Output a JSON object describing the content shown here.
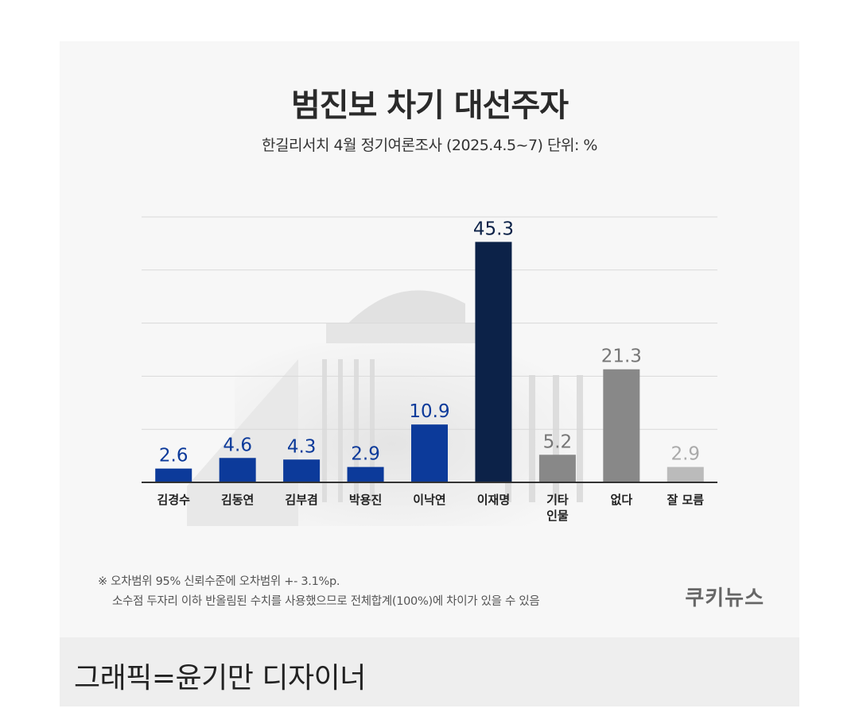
{
  "caption": "그래픽=윤기만 디자이너",
  "footnote": {
    "line1": "※ 오차범위 95% 신뢰수준에 오차범위 +- 3.1%p.",
    "line2": "소수점 두자리 이하 반올림된 수치를 사용했으므로 전체합계(100%)에 차이가 있을 수 있음"
  },
  "logo": "쿠키뉴스",
  "colors": {
    "blue": "#0c3a9a",
    "navy": "#0c2248",
    "gray_dark": "#888888",
    "gray_light": "#bbbbbb"
  },
  "chart_data": {
    "type": "bar",
    "title": "범진보 차기 대선주자",
    "subtitle": "한길리서치 4월 정기여론조사 (2025.4.5~7) 단위: %",
    "categories": [
      "김경수",
      "김동연",
      "김부겸",
      "박용진",
      "이낙연",
      "이재명",
      "기타\n인물",
      "없다",
      "잘 모름"
    ],
    "values": [
      2.6,
      4.6,
      4.3,
      2.9,
      10.9,
      45.3,
      5.2,
      21.3,
      2.9
    ],
    "value_labels": [
      "2.6",
      "4.6",
      "4.3",
      "2.9",
      "10.9",
      "45.3",
      "5.2",
      "21.3",
      "2.9"
    ],
    "bar_colors": [
      "#0c3a9a",
      "#0c3a9a",
      "#0c3a9a",
      "#0c3a9a",
      "#0c3a9a",
      "#0c2248",
      "#888888",
      "#888888",
      "#bbbbbb"
    ],
    "label_colors": [
      "#0c3a9a",
      "#0c3a9a",
      "#0c3a9a",
      "#0c3a9a",
      "#0c3a9a",
      "#0c2248",
      "#777777",
      "#777777",
      "#aaaaaa"
    ],
    "ylim": [
      0,
      50
    ],
    "grid": true,
    "legend": "none"
  }
}
